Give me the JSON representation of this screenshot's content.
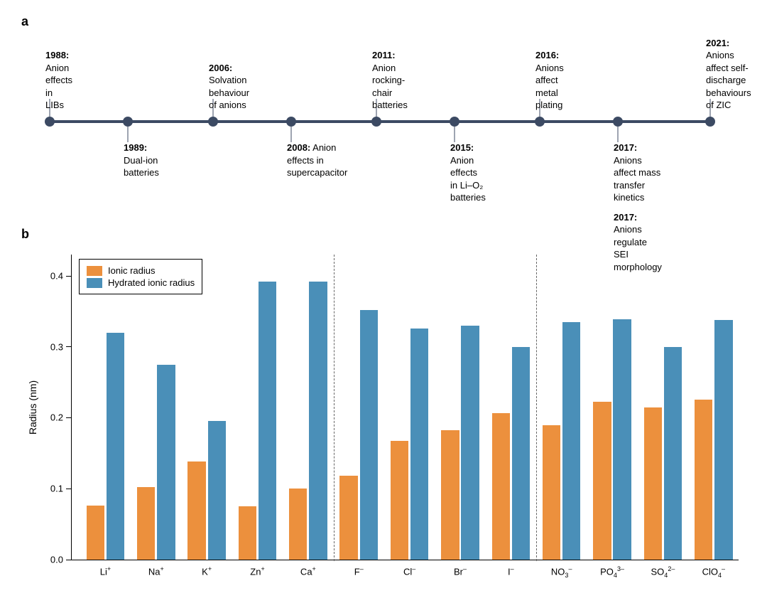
{
  "panel_a": {
    "label": "a",
    "timeline_color": "#3c4a63",
    "dot_color": "#3c4a63",
    "tick_color": "#3c4a63",
    "text_color": "#000000",
    "font_size": 13,
    "events": [
      {
        "pos_pct": 3,
        "side": "above",
        "year": "1988:",
        "text": "Anion effects in LIBs"
      },
      {
        "pos_pct": 14,
        "side": "below",
        "year": "1989:",
        "text": "Dual-ion batteries"
      },
      {
        "pos_pct": 26,
        "side": "above",
        "year": "2006:",
        "text": "Solvation behaviour of anions"
      },
      {
        "pos_pct": 37,
        "side": "below",
        "year": "2008:",
        "text": "Anion effects in supercapacitor"
      },
      {
        "pos_pct": 49,
        "side": "above",
        "year": "2011:",
        "text": "Anion rocking-chair batteries"
      },
      {
        "pos_pct": 60,
        "side": "below",
        "year": "2015:",
        "text": "Anion effects in Li–O₂ batteries"
      },
      {
        "pos_pct": 72,
        "side": "above",
        "year": "2016:",
        "text": "Anions affect metal plating"
      },
      {
        "pos_pct": 83,
        "side": "below",
        "year": "2017:",
        "text": "Anions affect mass transfer kinetics",
        "extra_year": "2017:",
        "extra_text": "Anions regulate SEI morphology"
      },
      {
        "pos_pct": 96,
        "side": "above",
        "year": "2021:",
        "text": "Anions affect self-discharge behaviours of ZIC"
      }
    ]
  },
  "panel_b": {
    "label": "b",
    "type": "grouped-bar",
    "ylabel": "Radius (nm)",
    "ylim": [
      0.0,
      0.43
    ],
    "yticks": [
      0.0,
      0.1,
      0.2,
      0.3,
      0.4
    ],
    "ytick_labels": [
      "0.0",
      "0.1",
      "0.2",
      "0.3",
      "0.4"
    ],
    "axis_color": "#000000",
    "label_fontsize": 14,
    "tick_fontsize": 13,
    "background_color": "#ffffff",
    "legend": {
      "items": [
        {
          "label": "Ionic radius",
          "color": "#ec903d"
        },
        {
          "label": "Hydrated ionic radius",
          "color": "#4a8fb8"
        }
      ]
    },
    "series_colors": {
      "ionic": "#ec903d",
      "hydrated": "#4a8fb8"
    },
    "bar_width_pct": 2.7,
    "bar_gap_pct": 0.3,
    "group_gap_pct": 1.9,
    "dividers_after_index": [
      4,
      8
    ],
    "divider_color": "#666666",
    "categories": [
      {
        "label_html": "Li<sup>+</sup>",
        "ionic": 0.076,
        "hydrated": 0.32
      },
      {
        "label_html": "Na<sup>+</sup>",
        "ionic": 0.102,
        "hydrated": 0.275
      },
      {
        "label_html": "K<sup>+</sup>",
        "ionic": 0.138,
        "hydrated": 0.195
      },
      {
        "label_html": "Zn<sup>+</sup>",
        "ionic": 0.075,
        "hydrated": 0.392
      },
      {
        "label_html": "Ca<sup>+</sup>",
        "ionic": 0.1,
        "hydrated": 0.392
      },
      {
        "label_html": "F<sup>–</sup>",
        "ionic": 0.118,
        "hydrated": 0.352
      },
      {
        "label_html": "Cl<sup>–</sup>",
        "ionic": 0.167,
        "hydrated": 0.326
      },
      {
        "label_html": "Br<sup>–</sup>",
        "ionic": 0.182,
        "hydrated": 0.33
      },
      {
        "label_html": "I<sup>–</sup>",
        "ionic": 0.206,
        "hydrated": 0.3
      },
      {
        "label_html": "NO<sub>3</sub><sup>–</sup>",
        "ionic": 0.189,
        "hydrated": 0.335
      },
      {
        "label_html": "PO<sub>4</sub><sup>3–</sup>",
        "ionic": 0.223,
        "hydrated": 0.339
      },
      {
        "label_html": "SO<sub>4</sub><sup>2–</sup>",
        "ionic": 0.215,
        "hydrated": 0.3
      },
      {
        "label_html": "ClO<sub>4</sub><sup>–</sup>",
        "ionic": 0.226,
        "hydrated": 0.338
      }
    ]
  }
}
